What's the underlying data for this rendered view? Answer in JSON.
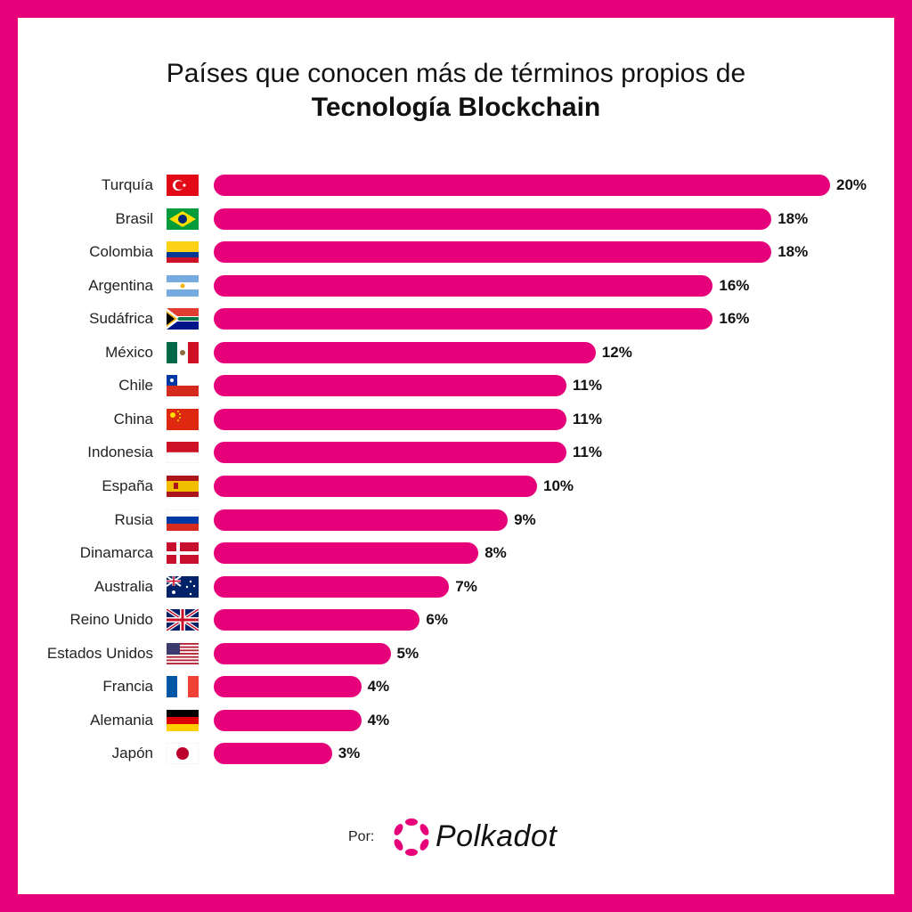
{
  "title_line1": "Países que conocen más de términos propios de",
  "title_line2": "Tecnología Blockchain",
  "footer": {
    "by_label": "Por:",
    "brand": "Polkadot",
    "logo_icon": "polkadot-logo-icon"
  },
  "colors": {
    "bar": "#e6007a",
    "border": "#e6007a",
    "background": "#ffffff"
  },
  "chart_data": {
    "type": "bar",
    "orientation": "horizontal",
    "title": "Países que conocen más de términos propios de Tecnología Blockchain",
    "xlim": [
      0,
      20
    ],
    "grid": false,
    "categories": [
      "Turquía",
      "Brasil",
      "Colombia",
      "Argentina",
      "Sudáfrica",
      "México",
      "Chile",
      "China",
      "Indonesia",
      "España",
      "Rusia",
      "Dinamarca",
      "Australia",
      "Reino Unido",
      "Estados Unidos",
      "Francia",
      "Alemania",
      "Japón"
    ],
    "flags": [
      "flag-tr",
      "flag-br",
      "flag-co",
      "flag-ar",
      "flag-za",
      "flag-mx",
      "flag-cl",
      "flag-cn",
      "flag-id",
      "flag-es",
      "flag-ru",
      "flag-dk",
      "flag-au",
      "flag-gb",
      "flag-us",
      "flag-fr",
      "flag-de",
      "flag-jp"
    ],
    "values": [
      20,
      18,
      18,
      16,
      16,
      12,
      11,
      11,
      11,
      10,
      9,
      8,
      7,
      6,
      5,
      4,
      4,
      3
    ],
    "value_labels": [
      "20%",
      "18%",
      "18%",
      "16%",
      "16%",
      "12%",
      "11%",
      "11%",
      "11%",
      "10%",
      "9%",
      "8%",
      "7%",
      "6%",
      "5%",
      "4%",
      "4%",
      "3%"
    ]
  }
}
